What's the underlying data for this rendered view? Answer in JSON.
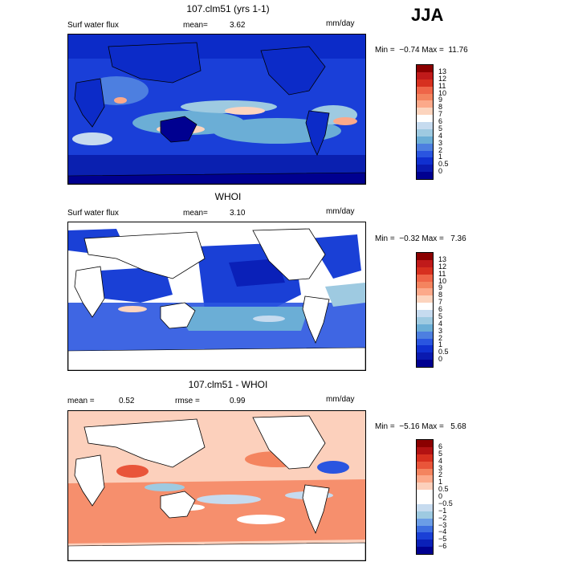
{
  "season": "JJA",
  "panels": [
    {
      "title": "107.clm51 (yrs 1-1)",
      "variable": "Surf water flux",
      "mean_label": "mean=",
      "mean_value": "3.62",
      "units": "mm/day",
      "minmax": "Min =  −0.74 Max =  11.76",
      "colorbar": {
        "labels": [
          "13",
          "12",
          "11",
          "10",
          "9",
          "8",
          "7",
          "6",
          "5",
          "4",
          "3",
          "2",
          "1",
          "0.5",
          "0"
        ],
        "colors": [
          "#8b0000",
          "#c01a1a",
          "#d7301f",
          "#ef6548",
          "#f4845f",
          "#fca98a",
          "#fcd4be",
          "#ffffff",
          "#c6dbef",
          "#9ecae1",
          "#6baed6",
          "#4d7fe0",
          "#2a55e0",
          "#1030d0",
          "#0a1ab0",
          "#000090"
        ]
      }
    },
    {
      "title": "WHOI",
      "variable": "Surf water flux",
      "mean_label": "mean=",
      "mean_value": "3.10",
      "units": "mm/day",
      "minmax": "Min =  −0.32 Max =   7.36",
      "colorbar": {
        "labels": [
          "13",
          "12",
          "11",
          "10",
          "9",
          "8",
          "7",
          "6",
          "5",
          "4",
          "3",
          "2",
          "1",
          "0.5",
          "0"
        ],
        "colors": [
          "#8b0000",
          "#c01a1a",
          "#d7301f",
          "#ef6548",
          "#f4845f",
          "#fca98a",
          "#fcd4be",
          "#ffffff",
          "#c6dbef",
          "#9ecae1",
          "#6baed6",
          "#4d7fe0",
          "#2a55e0",
          "#1030d0",
          "#0a1ab0",
          "#000090"
        ]
      }
    },
    {
      "title": "107.clm51 - WHOI",
      "variable": "",
      "mean_label": "mean =",
      "mean_value": "0.52",
      "rmse_label": "rmse =",
      "rmse_value": "0.99",
      "units": "mm/day",
      "minmax": "Min =  −5.16 Max =   5.68",
      "colorbar": {
        "labels": [
          "6",
          "5",
          "4",
          "3",
          "2",
          "1",
          "0.5",
          "0",
          "−0.5",
          "−1",
          "−2",
          "−3",
          "−4",
          "−5",
          "−6"
        ],
        "colors": [
          "#8b0000",
          "#b31212",
          "#d7301f",
          "#e9553a",
          "#f4845f",
          "#fca98a",
          "#fcd0bc",
          "#ffffff",
          "#ffffff",
          "#c6dbef",
          "#9ecae1",
          "#6b9de6",
          "#3d6ee0",
          "#1a40d6",
          "#0a20b8",
          "#000090"
        ]
      }
    }
  ]
}
